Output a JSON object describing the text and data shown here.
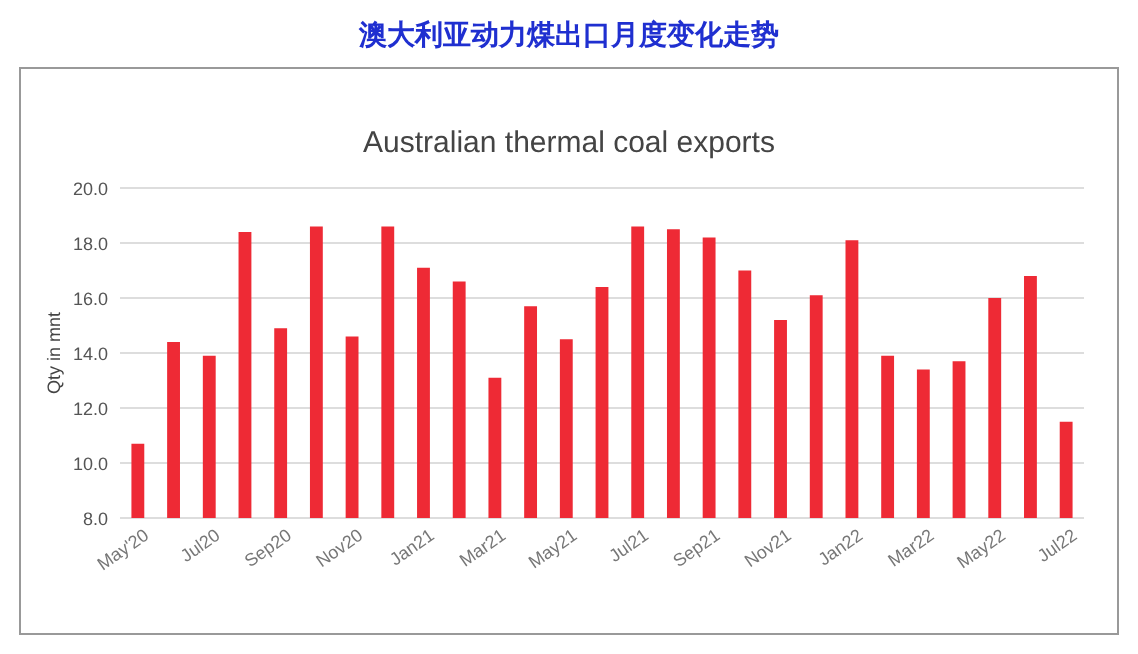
{
  "chart_data": {
    "type": "bar",
    "title": "澳大利亚动力煤出口月度变化走势",
    "subtitle": "Australian thermal coal exports",
    "ylabel": "Qty in mnt",
    "categories": [
      "May'20",
      null,
      "Jul20",
      null,
      "Sep20",
      null,
      "Nov20",
      null,
      "Jan21",
      null,
      "Mar21",
      null,
      "May21",
      null,
      "Jul21",
      null,
      "Sep21",
      null,
      "Nov21",
      null,
      "Jan22",
      null,
      "Mar22",
      null,
      "May22",
      null,
      "Jul22"
    ],
    "values": [
      10.7,
      14.4,
      13.9,
      18.4,
      14.9,
      18.6,
      14.6,
      18.6,
      17.1,
      16.6,
      13.1,
      15.7,
      14.5,
      16.4,
      18.6,
      18.5,
      18.2,
      17.0,
      15.2,
      16.1,
      18.1,
      13.9,
      13.4,
      13.7,
      16.0,
      16.8,
      11.5
    ],
    "color": "#ee2a35",
    "ylim": [
      8,
      20
    ],
    "yticks": [
      {
        "value": 8,
        "label": "8.0"
      },
      {
        "value": 10,
        "label": "10.0"
      },
      {
        "value": 12,
        "label": "12.0"
      },
      {
        "value": 14,
        "label": "14.0"
      },
      {
        "value": 16,
        "label": "16.0"
      },
      {
        "value": 18,
        "label": "18.0"
      },
      {
        "value": 20,
        "label": "20.0"
      }
    ],
    "grid": "y"
  }
}
